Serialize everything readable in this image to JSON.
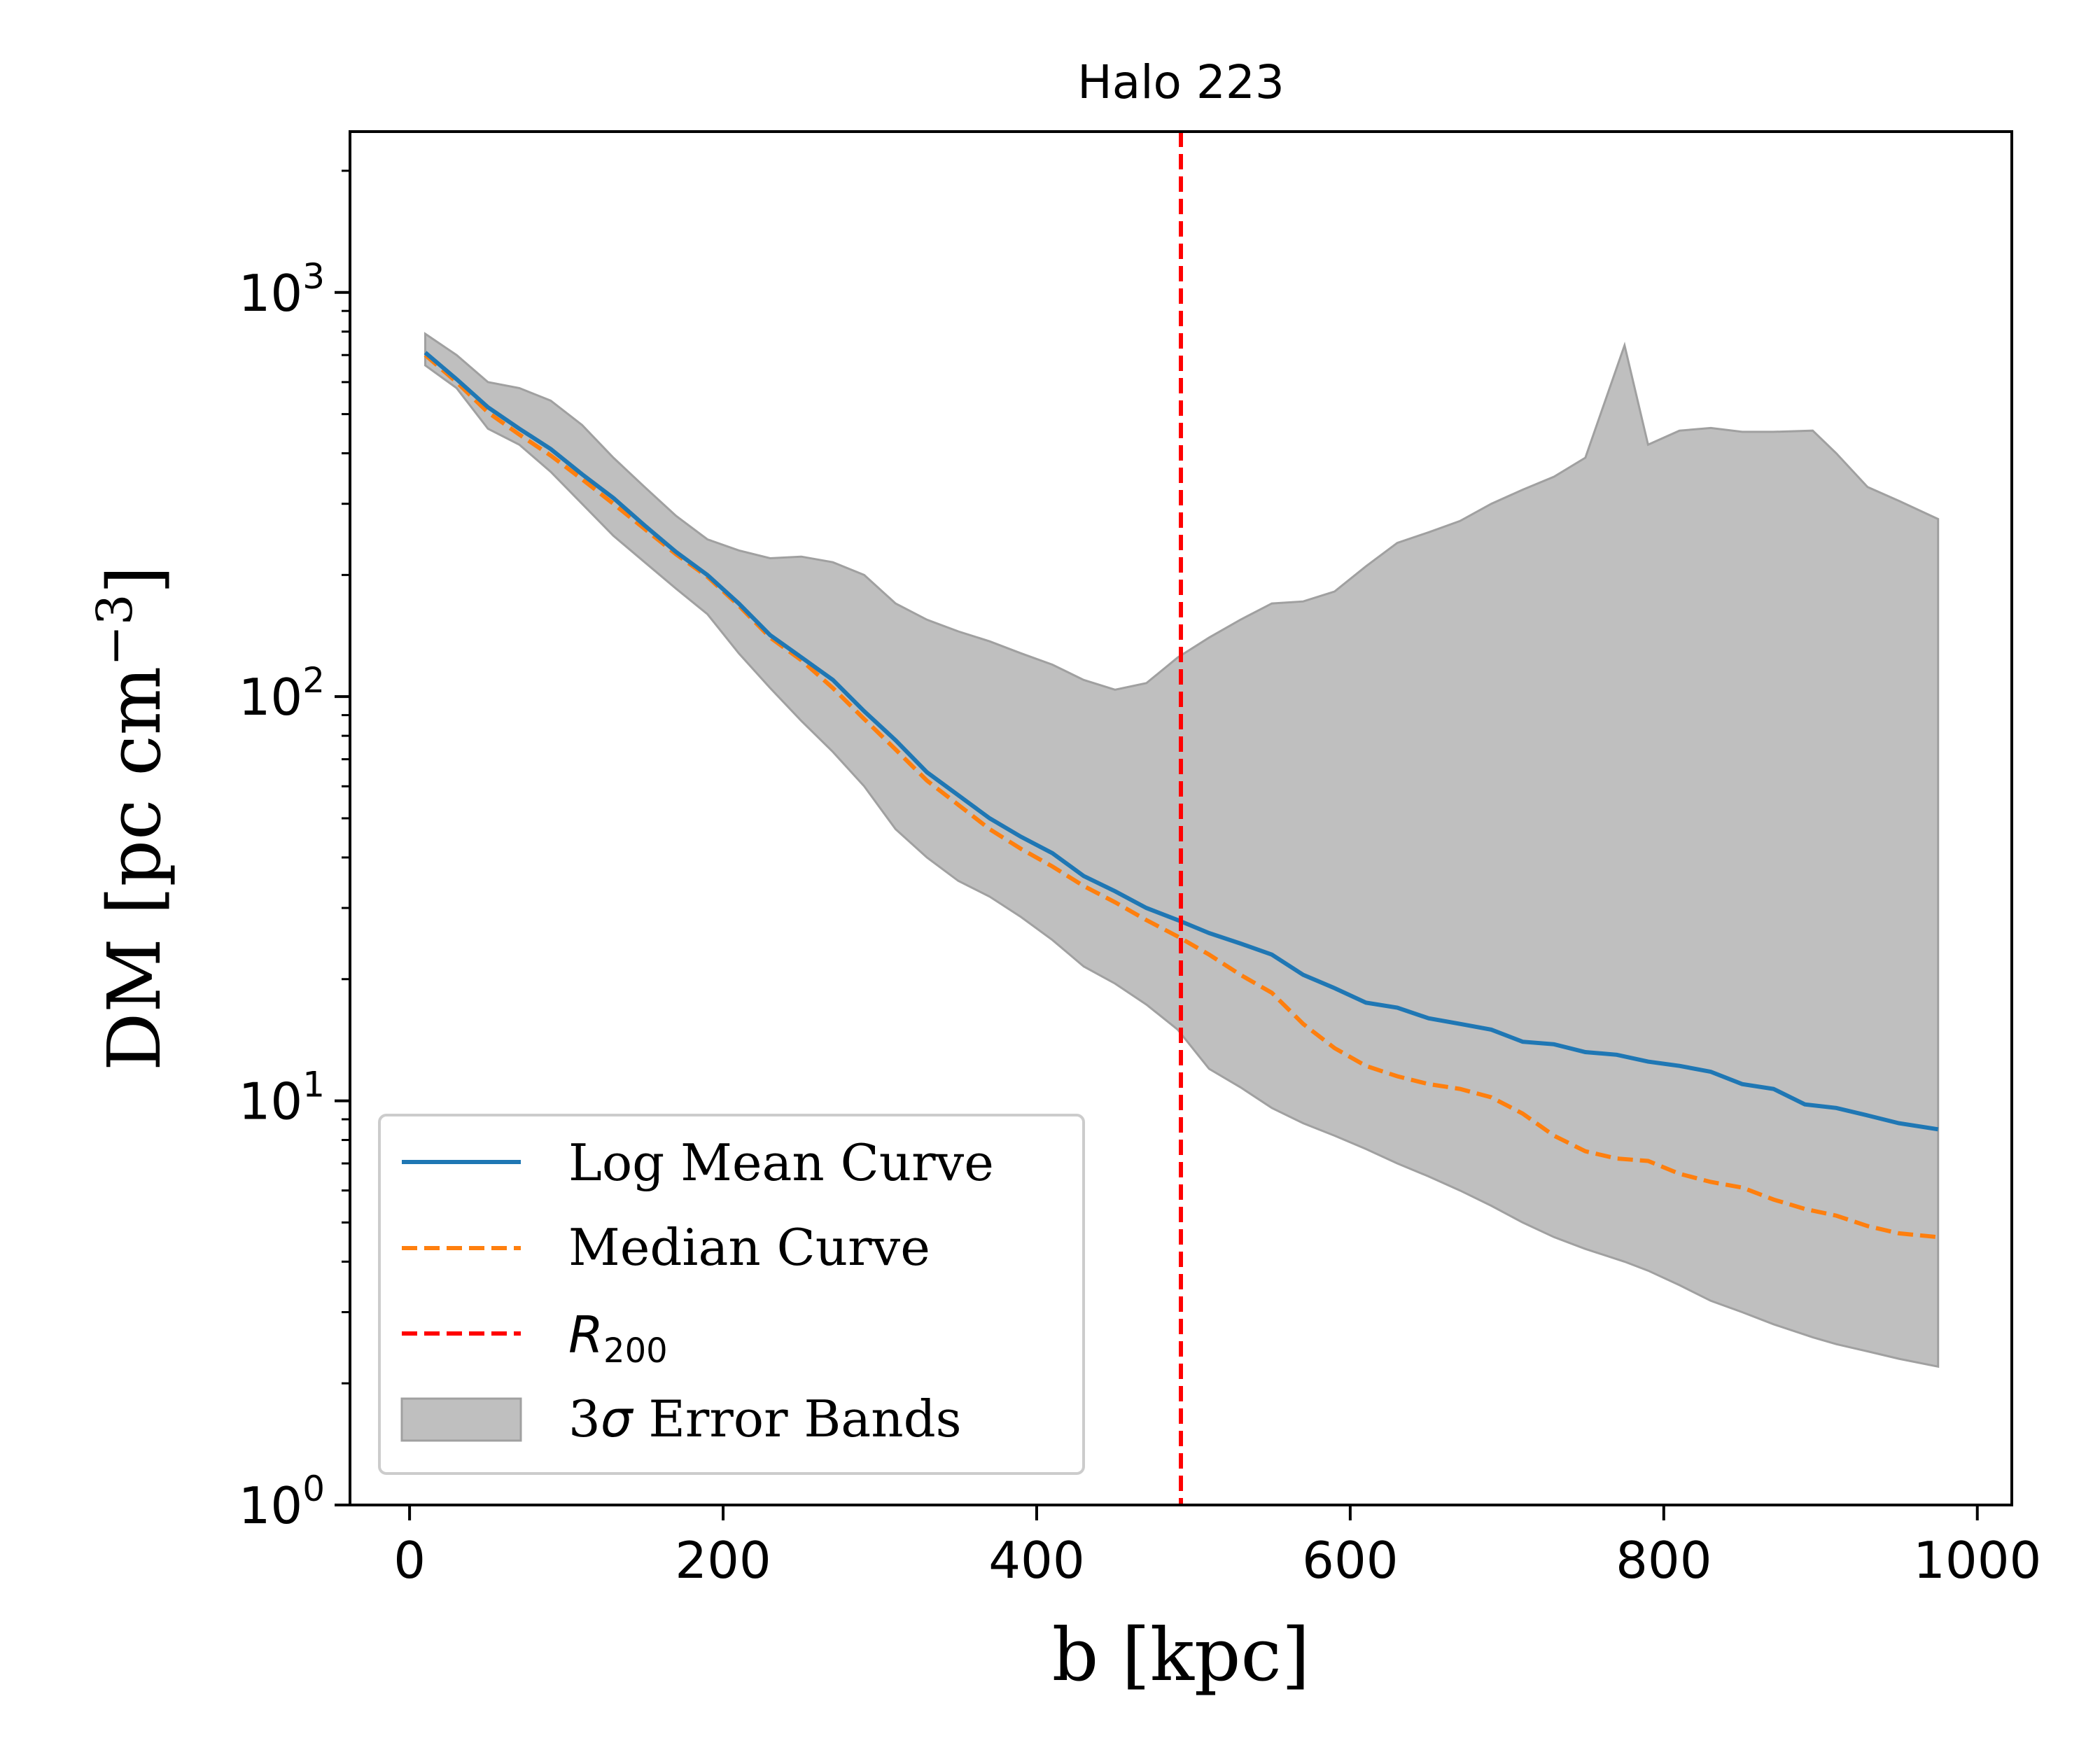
{
  "chart_data": {
    "type": "line",
    "title": "Halo 223",
    "xlabel": "b [kpc]",
    "ylabel": "DM [pc cm−3]",
    "ylabel_parts": {
      "base": "DM [pc cm",
      "sup": "−3",
      "close": "]"
    },
    "xlim": [
      -38,
      1022
    ],
    "ylim": [
      1,
      2500
    ],
    "yscale": "log",
    "xticks": [
      0,
      200,
      400,
      600,
      800,
      1000
    ],
    "xtick_labels": [
      "0",
      "200",
      "400",
      "600",
      "800",
      "1000"
    ],
    "yticks": [
      1,
      10,
      100,
      1000
    ],
    "ytick_labels": [
      {
        "base": "10",
        "exp": "0"
      },
      {
        "base": "10",
        "exp": "1"
      },
      {
        "base": "10",
        "exp": "2"
      },
      {
        "base": "10",
        "exp": "3"
      }
    ],
    "grid": false,
    "legend_position": "lower-left",
    "r200": 492,
    "series": [
      {
        "name": "Log Mean Curve",
        "color": "#1f77b4",
        "style": "solid",
        "x": [
          10,
          30,
          50,
          70,
          90,
          110,
          130,
          150,
          170,
          190,
          210,
          230,
          250,
          270,
          290,
          310,
          330,
          350,
          370,
          390,
          410,
          430,
          450,
          470,
          490,
          510,
          530,
          550,
          570,
          590,
          610,
          630,
          650,
          670,
          690,
          710,
          730,
          750,
          770,
          790,
          810,
          830,
          850,
          870,
          890,
          910,
          930,
          950,
          975
        ],
        "y": [
          710,
          610,
          520,
          460,
          410,
          355,
          310,
          265,
          228,
          200,
          170,
          142,
          125,
          110,
          92,
          78,
          65,
          57,
          50,
          45,
          41,
          36,
          33,
          30,
          28,
          26,
          24.5,
          23,
          20.5,
          19,
          17.5,
          17,
          16,
          15.5,
          15,
          14,
          13.8,
          13.2,
          13,
          12.5,
          12.2,
          11.8,
          11,
          10.7,
          9.8,
          9.6,
          9.2,
          8.8,
          8.5
        ]
      },
      {
        "name": "Median Curve",
        "color": "#ff7f0e",
        "style": "dashed",
        "x": [
          10,
          30,
          50,
          70,
          90,
          110,
          130,
          150,
          170,
          190,
          210,
          230,
          250,
          270,
          290,
          310,
          330,
          350,
          370,
          390,
          410,
          430,
          450,
          470,
          490,
          510,
          530,
          550,
          570,
          590,
          610,
          630,
          650,
          670,
          690,
          710,
          730,
          750,
          770,
          790,
          810,
          830,
          850,
          870,
          890,
          910,
          930,
          950,
          975
        ],
        "y": [
          700,
          600,
          505,
          445,
          395,
          345,
          300,
          260,
          225,
          198,
          168,
          140,
          123,
          105,
          88,
          74,
          62,
          54,
          47,
          42,
          38,
          34,
          31,
          28,
          25.5,
          23,
          20.5,
          18.5,
          15.5,
          13.5,
          12.2,
          11.5,
          11,
          10.7,
          10.2,
          9.3,
          8.2,
          7.5,
          7.2,
          7.1,
          6.6,
          6.3,
          6.1,
          5.7,
          5.4,
          5.2,
          4.9,
          4.7,
          4.6
        ]
      },
      {
        "name": "R200",
        "label_base": "R",
        "label_sub": "200",
        "color": "#ff0000",
        "style": "dashed",
        "x": [
          492,
          492
        ],
        "y": [
          1,
          2500
        ]
      }
    ],
    "band": {
      "name": "3σ Error Bands",
      "label_sigma": "σ",
      "label_prefix": "3",
      "label_suffix": " Error Bands",
      "color": "#bfbfbf",
      "edge_color": "#a0a0a0",
      "x": [
        10,
        30,
        50,
        70,
        90,
        110,
        130,
        150,
        170,
        190,
        210,
        230,
        250,
        270,
        290,
        310,
        330,
        350,
        370,
        390,
        410,
        430,
        450,
        470,
        490,
        510,
        530,
        550,
        570,
        590,
        610,
        630,
        650,
        670,
        690,
        710,
        730,
        750,
        775,
        790,
        810,
        830,
        850,
        870,
        895,
        910,
        930,
        950,
        975
      ],
      "upper": [
        790,
        700,
        600,
        580,
        540,
        470,
        390,
        330,
        280,
        245,
        230,
        220,
        222,
        215,
        200,
        170,
        155,
        145,
        137,
        128,
        120,
        110,
        104,
        108,
        125,
        140,
        155,
        170,
        172,
        182,
        210,
        240,
        255,
        272,
        300,
        325,
        350,
        390,
        740,
        420,
        455,
        462,
        452,
        452,
        455,
        400,
        330,
        305,
        275
      ],
      "lower": [
        660,
        580,
        460,
        420,
        360,
        300,
        250,
        215,
        185,
        160,
        128,
        105,
        87,
        73,
        60,
        47,
        40,
        35,
        32,
        28.5,
        25,
        21.5,
        19.5,
        17.3,
        15,
        12,
        10.8,
        9.6,
        8.8,
        8.2,
        7.6,
        7,
        6.5,
        6,
        5.5,
        5,
        4.6,
        4.3,
        4,
        3.8,
        3.5,
        3.2,
        3,
        2.8,
        2.6,
        2.5,
        2.4,
        2.3,
        2.2
      ]
    }
  }
}
